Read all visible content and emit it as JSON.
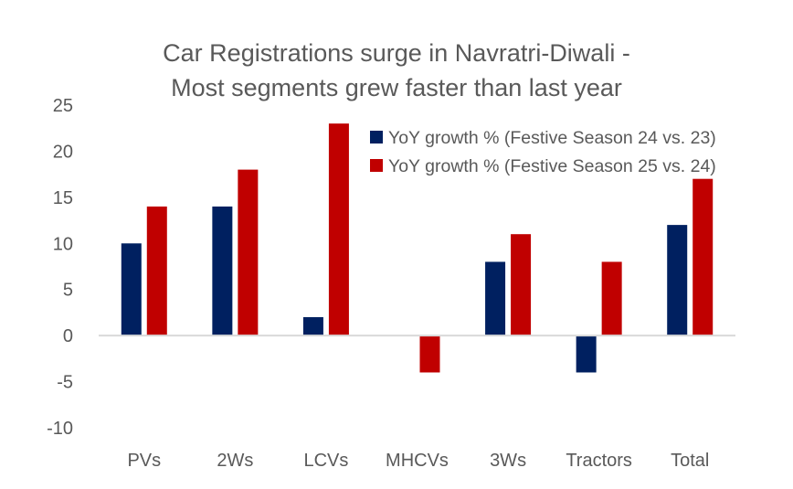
{
  "chart_data": {
    "type": "bar",
    "title_lines": [
      "Car Registrations surge in Navratri-Diwali -",
      "Most segments grew faster than last year"
    ],
    "xlabel": "",
    "ylabel": "",
    "categories": [
      "PVs",
      "2Ws",
      "LCVs",
      "MHCVs",
      "3Ws",
      "Tractors",
      "Total"
    ],
    "series": [
      {
        "name": "YoY growth % (Festive Season 24 vs. 23)",
        "color": "#002060",
        "values": [
          10,
          14,
          2,
          0,
          8,
          -4,
          12
        ]
      },
      {
        "name": "YoY growth % (Festive Season 25 vs. 24)",
        "color": "#C00000",
        "values": [
          14,
          18,
          23,
          -4,
          11,
          8,
          17
        ]
      }
    ],
    "ylim": [
      -10,
      25
    ],
    "yticks": [
      25,
      20,
      15,
      10,
      5,
      0,
      -5,
      -10
    ],
    "grid": false,
    "legend_position": "top-right"
  }
}
